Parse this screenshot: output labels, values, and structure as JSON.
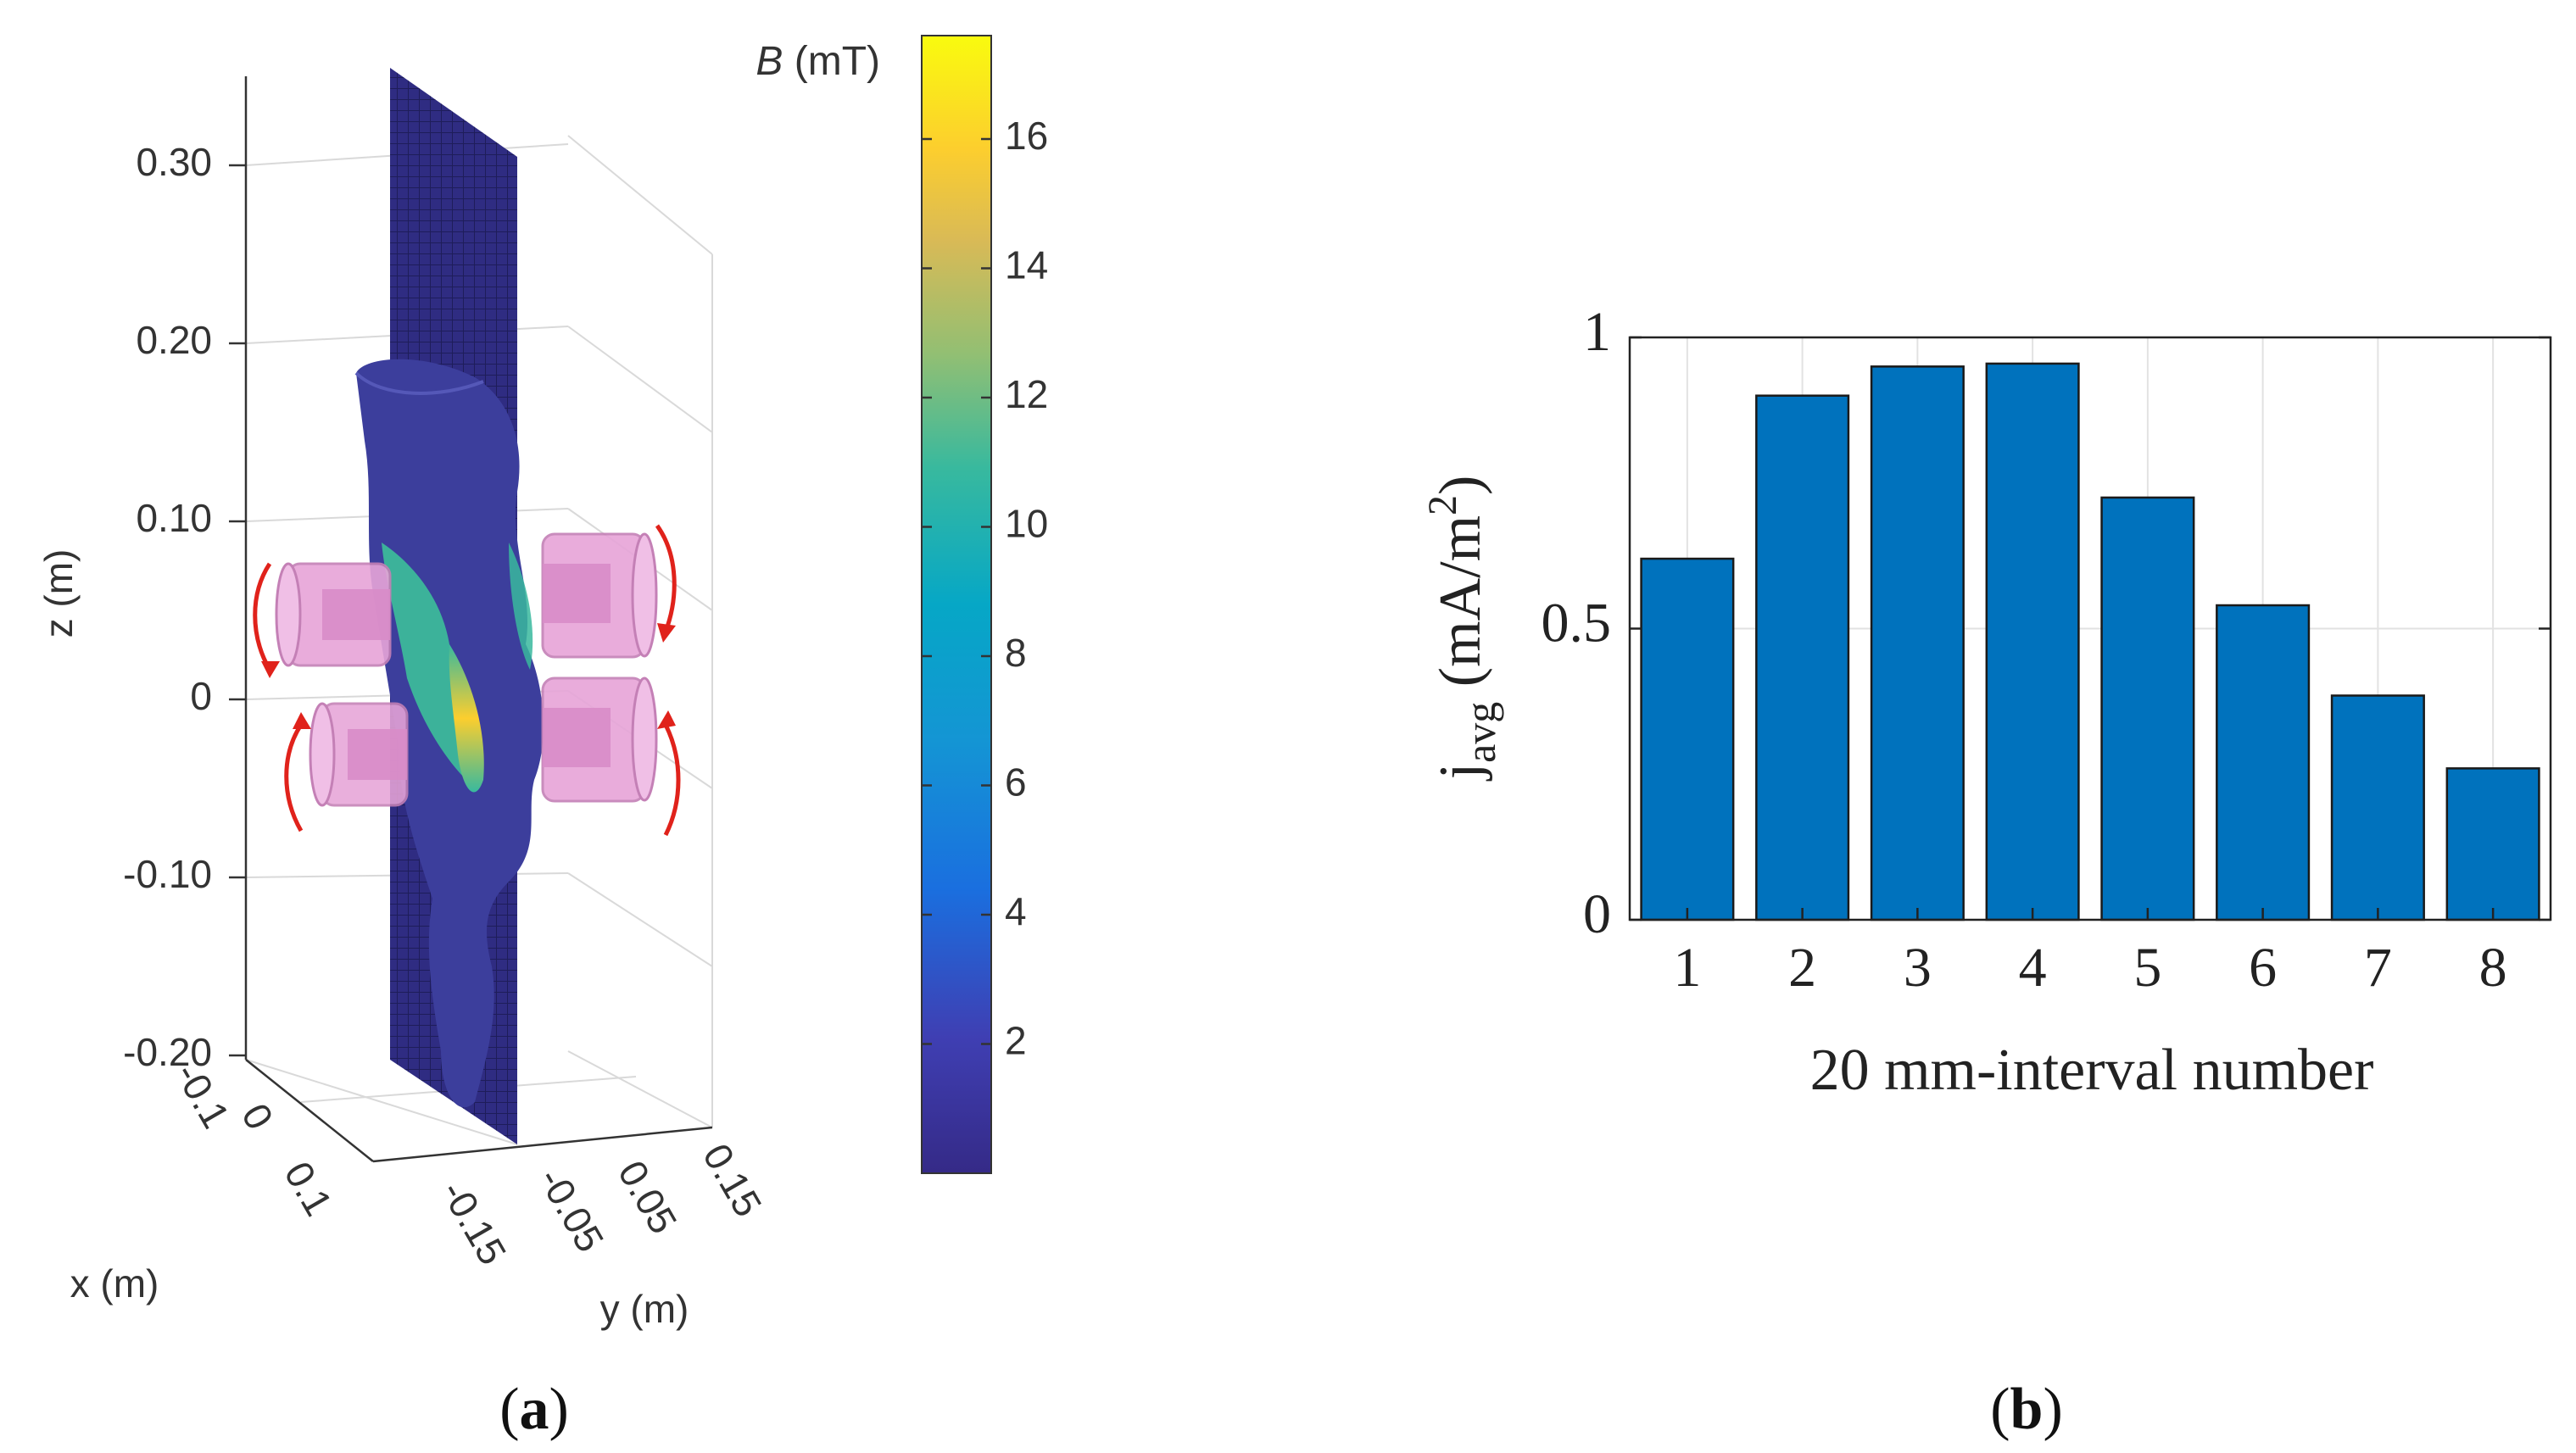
{
  "panel_a": {
    "label_open": "(",
    "label_letter": "a",
    "label_close": ")",
    "colorbar": {
      "title_var": "B",
      "title_unit": " (mT)",
      "ticks": [
        "2",
        "4",
        "6",
        "8",
        "10",
        "12",
        "14",
        "16"
      ],
      "tick_values": [
        2,
        4,
        6,
        8,
        10,
        12,
        14,
        16
      ],
      "range": [
        0,
        17.6
      ]
    },
    "z_axis": {
      "label": "z (m)",
      "ticks": [
        "0.30",
        "0.20",
        "0.10",
        "0",
        "-0.10",
        "-0.20"
      ]
    },
    "x_axis": {
      "label": "x (m)",
      "ticks": [
        "-0.1",
        "0",
        "0.1"
      ]
    },
    "y_axis": {
      "label": "y (m)",
      "ticks": [
        "-0.15",
        "-0.05",
        "0.05",
        "0.15"
      ]
    }
  },
  "panel_b": {
    "label_open": "(",
    "label_letter": "b",
    "label_close": ")"
  },
  "chart_data": {
    "type": "bar",
    "categories": [
      "1",
      "2",
      "3",
      "4",
      "5",
      "6",
      "7",
      "8"
    ],
    "values": [
      0.62,
      0.9,
      0.95,
      0.955,
      0.725,
      0.54,
      0.385,
      0.26
    ],
    "title": "",
    "xlabel": "20 mm-interval number",
    "ylabel_main": "j",
    "ylabel_sub": "avg",
    "ylabel_unit": " (mA/m",
    "ylabel_sup": "2",
    "ylabel_close": ")",
    "ylim": [
      0,
      1
    ],
    "yticks": [
      0,
      0.5,
      1
    ],
    "ytick_labels": [
      "0",
      "0.5",
      "1"
    ],
    "grid": true,
    "bar_color": "#0072bd"
  }
}
